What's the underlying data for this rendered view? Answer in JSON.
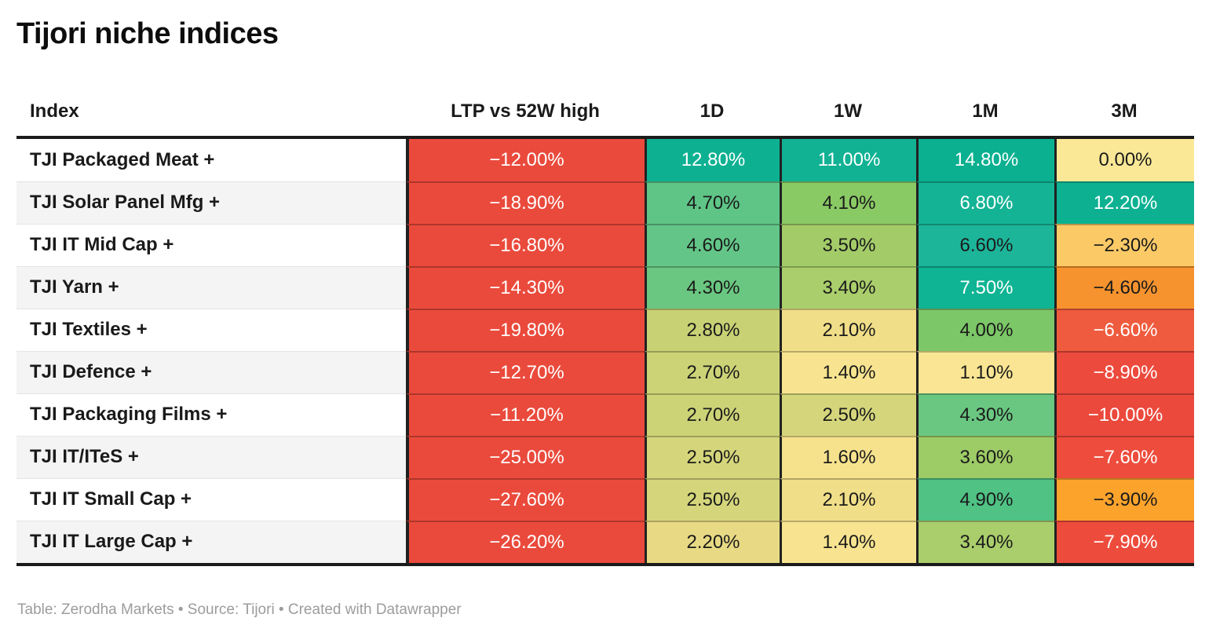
{
  "title": "Tijori niche indices",
  "footer": "Table: Zerodha Markets • Source: Tijori • Created with Datawrapper",
  "colors": {
    "strong_positive_teal": "#0db192",
    "strong_negative_red": "#ea4a3c",
    "neutral_yellow": "#fae896",
    "header_rule": "#1b1b1b",
    "alt_row_bg": "#f4f4f4",
    "footer_gray": "#9c9c9c"
  },
  "table": {
    "columns": [
      {
        "label": "Index",
        "align": "left"
      },
      {
        "label": "LTP vs 52W high",
        "align": "center"
      },
      {
        "label": "1D",
        "align": "center"
      },
      {
        "label": "1W",
        "align": "center"
      },
      {
        "label": "1M",
        "align": "center"
      },
      {
        "label": "3M",
        "align": "center"
      }
    ],
    "rows": [
      {
        "label": "TJI Packaged Meat +",
        "cells": [
          {
            "text": "−12.00%",
            "bg": "#ea4a3c",
            "fg": "#ffffff"
          },
          {
            "text": "12.80%",
            "bg": "#0db192",
            "fg": "#ffffff"
          },
          {
            "text": "11.00%",
            "bg": "#10b293",
            "fg": "#ffffff"
          },
          {
            "text": "14.80%",
            "bg": "#0ab090",
            "fg": "#ffffff"
          },
          {
            "text": "0.00%",
            "bg": "#fae896",
            "fg": "#1b1b1b"
          }
        ]
      },
      {
        "label": "TJI Solar Panel Mfg +",
        "cells": [
          {
            "text": "−18.90%",
            "bg": "#ea4a3c",
            "fg": "#ffffff"
          },
          {
            "text": "4.70%",
            "bg": "#5fc587",
            "fg": "#1b1b1b"
          },
          {
            "text": "4.10%",
            "bg": "#8aca64",
            "fg": "#1b1b1b"
          },
          {
            "text": "6.80%",
            "bg": "#14b395",
            "fg": "#ffffff"
          },
          {
            "text": "12.20%",
            "bg": "#0db192",
            "fg": "#ffffff"
          }
        ]
      },
      {
        "label": "TJI IT Mid Cap +",
        "cells": [
          {
            "text": "−16.80%",
            "bg": "#ea4a3c",
            "fg": "#ffffff"
          },
          {
            "text": "4.60%",
            "bg": "#63c688",
            "fg": "#1b1b1b"
          },
          {
            "text": "3.50%",
            "bg": "#a3cc68",
            "fg": "#1b1b1b"
          },
          {
            "text": "6.60%",
            "bg": "#1db59a",
            "fg": "#1b1b1b"
          },
          {
            "text": "−2.30%",
            "bg": "#fbca67",
            "fg": "#1b1b1b"
          }
        ]
      },
      {
        "label": "TJI Yarn +",
        "cells": [
          {
            "text": "−14.30%",
            "bg": "#ea4a3c",
            "fg": "#ffffff"
          },
          {
            "text": "4.30%",
            "bg": "#6ac781",
            "fg": "#1b1b1b"
          },
          {
            "text": "3.40%",
            "bg": "#aace6b",
            "fg": "#1b1b1b"
          },
          {
            "text": "7.50%",
            "bg": "#0eb494",
            "fg": "#ffffff"
          },
          {
            "text": "−4.60%",
            "bg": "#f6932e",
            "fg": "#1b1b1b"
          }
        ]
      },
      {
        "label": "TJI Textiles +",
        "cells": [
          {
            "text": "−19.80%",
            "bg": "#ea4a3c",
            "fg": "#ffffff"
          },
          {
            "text": "2.80%",
            "bg": "#c8d274",
            "fg": "#1b1b1b"
          },
          {
            "text": "2.10%",
            "bg": "#f1de88",
            "fg": "#1b1b1b"
          },
          {
            "text": "4.00%",
            "bg": "#7cc767",
            "fg": "#1b1b1b"
          },
          {
            "text": "−6.60%",
            "bg": "#ef5b3e",
            "fg": "#ffffff"
          }
        ]
      },
      {
        "label": "TJI Defence +",
        "cells": [
          {
            "text": "−12.70%",
            "bg": "#ea4a3c",
            "fg": "#ffffff"
          },
          {
            "text": "2.70%",
            "bg": "#ccd376",
            "fg": "#1b1b1b"
          },
          {
            "text": "1.40%",
            "bg": "#f8e490",
            "fg": "#1b1b1b"
          },
          {
            "text": "1.10%",
            "bg": "#f9e593",
            "fg": "#1b1b1b"
          },
          {
            "text": "−8.90%",
            "bg": "#ec4a3c",
            "fg": "#ffffff"
          }
        ]
      },
      {
        "label": "TJI Packaging Films +",
        "cells": [
          {
            "text": "−11.20%",
            "bg": "#ea4a3c",
            "fg": "#ffffff"
          },
          {
            "text": "2.70%",
            "bg": "#ccd376",
            "fg": "#1b1b1b"
          },
          {
            "text": "2.50%",
            "bg": "#d5d67b",
            "fg": "#1b1b1b"
          },
          {
            "text": "4.30%",
            "bg": "#6ac781",
            "fg": "#1b1b1b"
          },
          {
            "text": "−10.00%",
            "bg": "#eb493c",
            "fg": "#ffffff"
          }
        ]
      },
      {
        "label": "TJI IT/ITeS +",
        "cells": [
          {
            "text": "−25.00%",
            "bg": "#ea4a3c",
            "fg": "#ffffff"
          },
          {
            "text": "2.50%",
            "bg": "#d5d67b",
            "fg": "#1b1b1b"
          },
          {
            "text": "1.60%",
            "bg": "#f6e28d",
            "fg": "#1b1b1b"
          },
          {
            "text": "3.60%",
            "bg": "#9dcb66",
            "fg": "#1b1b1b"
          },
          {
            "text": "−7.60%",
            "bg": "#ee4c3c",
            "fg": "#ffffff"
          }
        ]
      },
      {
        "label": "TJI IT Small Cap +",
        "cells": [
          {
            "text": "−27.60%",
            "bg": "#ea4a3c",
            "fg": "#ffffff"
          },
          {
            "text": "2.50%",
            "bg": "#d5d67b",
            "fg": "#1b1b1b"
          },
          {
            "text": "2.10%",
            "bg": "#f1de88",
            "fg": "#1b1b1b"
          },
          {
            "text": "4.90%",
            "bg": "#4fc284",
            "fg": "#1b1b1b"
          },
          {
            "text": "−3.90%",
            "bg": "#fca32c",
            "fg": "#1b1b1b"
          }
        ]
      },
      {
        "label": "TJI IT Large Cap +",
        "cells": [
          {
            "text": "−26.20%",
            "bg": "#ea4a3c",
            "fg": "#ffffff"
          },
          {
            "text": "2.20%",
            "bg": "#e8da84",
            "fg": "#1b1b1b"
          },
          {
            "text": "1.40%",
            "bg": "#f8e490",
            "fg": "#1b1b1b"
          },
          {
            "text": "3.40%",
            "bg": "#aace6b",
            "fg": "#1b1b1b"
          },
          {
            "text": "−7.90%",
            "bg": "#ed4b3c",
            "fg": "#ffffff"
          }
        ]
      }
    ]
  },
  "chart_data": {
    "type": "table",
    "title": "Tijori niche indices",
    "row_label_column": "Index",
    "rows": [
      "TJI Packaged Meat +",
      "TJI Solar Panel Mfg +",
      "TJI IT Mid Cap +",
      "TJI Yarn +",
      "TJI Textiles +",
      "TJI Defence +",
      "TJI Packaging Films +",
      "TJI IT/ITeS +",
      "TJI IT Small Cap +",
      "TJI IT Large Cap +"
    ],
    "series": [
      {
        "name": "LTP vs 52W high",
        "values": [
          -12.0,
          -18.9,
          -16.8,
          -14.3,
          -19.8,
          -12.7,
          -11.2,
          -25.0,
          -27.6,
          -26.2
        ]
      },
      {
        "name": "1D",
        "values": [
          12.8,
          4.7,
          4.6,
          4.3,
          2.8,
          2.7,
          2.7,
          2.5,
          2.5,
          2.2
        ]
      },
      {
        "name": "1W",
        "values": [
          11.0,
          4.1,
          3.5,
          3.4,
          2.1,
          1.4,
          2.5,
          1.6,
          2.1,
          1.4
        ]
      },
      {
        "name": "1M",
        "values": [
          14.8,
          6.8,
          6.6,
          7.5,
          4.0,
          1.1,
          4.3,
          3.6,
          4.9,
          3.4
        ]
      },
      {
        "name": "3M",
        "values": [
          0.0,
          12.2,
          -2.3,
          -4.6,
          -6.6,
          -8.9,
          -10.0,
          -7.6,
          -3.9,
          -7.9
        ]
      }
    ],
    "unit": "%",
    "style": "heatmap-colored cells, red (negative) → yellow (near zero) → green/teal (positive)",
    "source_note": "Table: Zerodha Markets • Source: Tijori • Created with Datawrapper"
  }
}
